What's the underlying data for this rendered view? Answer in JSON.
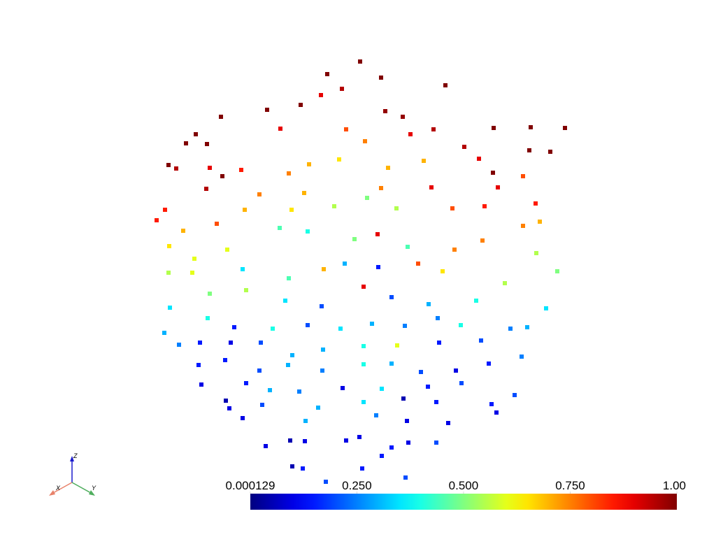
{
  "chart_data": {
    "type": "scatter",
    "colormap": "jet",
    "xlim": [
      -512,
      512
    ],
    "ylim": [
      -384,
      384
    ],
    "x": [
      3,
      -44,
      33,
      125,
      -23,
      -53,
      -82,
      -130,
      -196,
      39,
      64,
      108,
      194,
      247,
      296,
      -232,
      -246,
      -216,
      -271,
      -260,
      -111,
      -17,
      10,
      75,
      152,
      245,
      275,
      173,
      -167,
      -212,
      -194,
      -99,
      -70,
      -27,
      43,
      94,
      193,
      236,
      -217,
      -141,
      -77,
      33,
      105,
      200,
      -276,
      -288,
      -250,
      -202,
      -162,
      -95,
      -34,
      13,
      55,
      135,
      181,
      254,
      236,
      260,
      -270,
      -234,
      -187,
      -112,
      -72,
      -5,
      28,
      71,
      138,
      178,
      255,
      -271,
      -237,
      -165,
      -99,
      -49,
      -19,
      29,
      86,
      121,
      210,
      285,
      -269,
      -212,
      -160,
      -104,
      -52,
      8,
      48,
      101,
      169,
      269,
      -277,
      -215,
      -177,
      -122,
      -72,
      -25,
      20,
      67,
      114,
      147,
      218,
      242,
      -256,
      -226,
      -182,
      -139,
      -94,
      -50,
      8,
      56,
      116,
      176,
      234,
      -228,
      -190,
      -141,
      -100,
      -51,
      8,
      48,
      90,
      140,
      187,
      -224,
      -160,
      -126,
      -84,
      -22,
      34,
      100,
      148,
      224,
      -189,
      -137,
      -57,
      8,
      65,
      112,
      191,
      -184,
      -165,
      -75,
      26,
      70,
      129,
      198,
      -132,
      -97,
      -76,
      -17,
      2,
      48,
      72,
      112,
      -94,
      -79,
      -46,
      6,
      68,
      34
    ],
    "y": [
      296,
      278,
      273,
      262,
      257,
      248,
      234,
      227,
      217,
      225,
      217,
      199,
      201,
      202,
      201,
      192,
      179,
      178,
      148,
      143,
      200,
      199,
      182,
      192,
      174,
      169,
      167,
      157,
      141,
      144,
      132,
      136,
      149,
      156,
      144,
      154,
      137,
      132,
      114,
      106,
      108,
      115,
      116,
      116,
      84,
      69,
      54,
      64,
      84,
      84,
      89,
      101,
      86,
      86,
      89,
      93,
      61,
      67,
      32,
      14,
      27,
      58,
      53,
      42,
      49,
      31,
      27,
      40,
      22,
      -6,
      -6,
      -1,
      -14,
      -1,
      7,
      2,
      7,
      -4,
      -21,
      -4,
      -56,
      -36,
      -31,
      -46,
      -54,
      -26,
      -41,
      -51,
      -46,
      -57,
      -92,
      -71,
      -84,
      -86,
      -81,
      -86,
      -79,
      -82,
      -71,
      -81,
      -86,
      -84,
      -109,
      -106,
      -106,
      -106,
      -124,
      -116,
      -111,
      -110,
      -106,
      -103,
      -126,
      -138,
      -131,
      -146,
      -138,
      -146,
      -137,
      -136,
      -148,
      -146,
      -136,
      -166,
      -164,
      -174,
      -176,
      -171,
      -172,
      -169,
      -164,
      -181,
      -189,
      -195,
      -199,
      -191,
      -186,
      -191,
      -194,
      -200,
      -214,
      -218,
      -210,
      -218,
      -221,
      -206,
      -254,
      -246,
      -247,
      -246,
      -241,
      -256,
      -249,
      -249,
      -283,
      -286,
      -305,
      -286,
      -299,
      -268
    ],
    "values": [
      1.0,
      1.0,
      1.0,
      1.0,
      0.95,
      0.9,
      1.0,
      1.0,
      1.0,
      0.98,
      0.98,
      0.95,
      1.0,
      1.0,
      1.0,
      1.0,
      1.0,
      1.0,
      1.0,
      0.95,
      0.9,
      0.8,
      0.75,
      0.9,
      0.95,
      1.0,
      1.0,
      0.9,
      0.85,
      0.9,
      1.0,
      0.75,
      0.7,
      0.65,
      0.7,
      0.7,
      1.0,
      0.8,
      0.95,
      0.75,
      0.7,
      0.75,
      0.9,
      0.9,
      0.85,
      0.85,
      0.7,
      0.8,
      0.7,
      0.65,
      0.55,
      0.5,
      0.55,
      0.8,
      0.85,
      0.85,
      0.75,
      0.7,
      0.65,
      0.6,
      0.6,
      0.45,
      0.4,
      0.5,
      0.9,
      0.45,
      0.75,
      0.75,
      0.55,
      0.55,
      0.6,
      0.35,
      0.45,
      0.7,
      0.3,
      0.15,
      0.8,
      0.65,
      0.55,
      0.5,
      0.35,
      0.5,
      0.55,
      0.35,
      0.2,
      0.9,
      0.2,
      0.3,
      0.4,
      0.35,
      0.3,
      0.4,
      0.15,
      0.4,
      0.2,
      0.35,
      0.3,
      0.25,
      0.25,
      0.4,
      0.25,
      0.3,
      0.25,
      0.15,
      0.1,
      0.2,
      0.3,
      0.3,
      0.4,
      0.6,
      0.15,
      0.2,
      0.25,
      0.15,
      0.15,
      0.2,
      0.3,
      0.25,
      0.4,
      0.3,
      0.2,
      0.1,
      0.15,
      0.1,
      0.15,
      0.3,
      0.25,
      0.1,
      0.35,
      0.15,
      0.2,
      0.2,
      0.05,
      0.2,
      0.3,
      0.35,
      0.05,
      0.15,
      0.15,
      0.1,
      0.1,
      0.3,
      0.25,
      0.1,
      0.1,
      0.1,
      0.1,
      0.05,
      0.1,
      0.1,
      0.1,
      0.15,
      0.1,
      0.2,
      0.05,
      0.15,
      0.2,
      0.15,
      0.2,
      0.15
    ],
    "clim": [
      0.000129,
      1
    ],
    "colorbar_ticks": [
      0.000129,
      {
        "value": 0.25,
        "label": "0.250"
      },
      {
        "value": 0.5,
        "label": "0.500"
      },
      {
        "value": 0.75,
        "label": "0.750"
      },
      {
        "value": 1,
        "label": "1.00"
      }
    ],
    "axis_labels": {
      "x": "X",
      "y": "Y",
      "z": "Z"
    }
  }
}
